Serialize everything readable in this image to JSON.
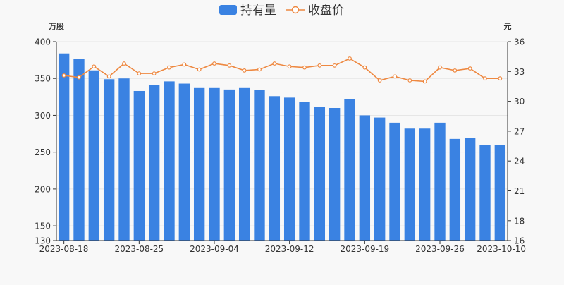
{
  "chart_data": {
    "type": "bar+line",
    "legend": {
      "position": "top-center",
      "items": [
        {
          "name": "持有量",
          "kind": "bar",
          "color": "#3a82e2"
        },
        {
          "name": "收盘价",
          "kind": "line",
          "color": "#ee8840"
        }
      ]
    },
    "left_axis": {
      "unit": "万股",
      "range": [
        130,
        400
      ],
      "ticks": [
        "130",
        "150",
        "200",
        "250",
        "300",
        "350",
        "400"
      ]
    },
    "right_axis": {
      "unit": "元",
      "range": [
        16,
        36
      ],
      "ticks": [
        "16",
        "18",
        "21",
        "24",
        "27",
        "30",
        "33",
        "36"
      ]
    },
    "x_tick_labels": [
      {
        "index": 0,
        "label": "2023-08-18"
      },
      {
        "index": 5,
        "label": "2023-08-25"
      },
      {
        "index": 10,
        "label": "2023-09-04"
      },
      {
        "index": 15,
        "label": "2023-09-12"
      },
      {
        "index": 20,
        "label": "2023-09-19"
      },
      {
        "index": 25,
        "label": "2023-09-26"
      },
      {
        "index": 30,
        "label": "2023-10-10"
      }
    ],
    "series": [
      {
        "name": "持有量",
        "type": "bar",
        "axis": "left",
        "color": "#3a82e2",
        "values": [
          384,
          377,
          361,
          349,
          350,
          333,
          341,
          346,
          343,
          337,
          337,
          335,
          337,
          334,
          326,
          324,
          318,
          311,
          310,
          322,
          300,
          297,
          290,
          282,
          282,
          290,
          268,
          269,
          260,
          260
        ]
      },
      {
        "name": "收盘价",
        "type": "line",
        "axis": "left-right",
        "color": "#ee8840",
        "values": [
          32.6,
          32.4,
          33.5,
          32.5,
          33.8,
          32.8,
          32.8,
          33.4,
          33.7,
          33.2,
          33.8,
          33.6,
          33.1,
          33.2,
          33.8,
          33.5,
          33.4,
          33.6,
          33.6,
          34.3,
          33.4,
          32.1,
          32.5,
          32.1,
          32.0,
          33.4,
          33.1,
          33.3,
          32.3,
          32.3
        ]
      }
    ],
    "grid": "horizontal-left-axis"
  }
}
